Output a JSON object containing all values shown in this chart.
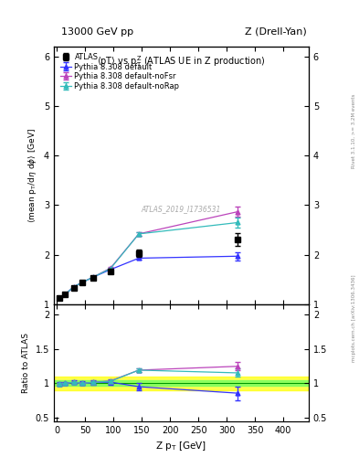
{
  "title_left": "13000 GeV pp",
  "title_right": "Z (Drell-Yan)",
  "plot_title": "<pT> vs p$_{T}^{Z}$ (ATLAS UE in Z production)",
  "xlabel": "Z p_{T} [GeV]",
  "ylabel_main": "<mean p_{T}/d#eta d#phi> [GeV]",
  "ylabel_ratio": "Ratio to ATLAS",
  "watermark": "ATLAS_2019_I1736531",
  "rivet_label": "Rivet 3.1.10, >= 3.2M events",
  "mcplots_label": "mcplots.cern.ch [arXiv:1306.3436]",
  "atlas_x": [
    5,
    15,
    30,
    45,
    65,
    95,
    145,
    320
  ],
  "atlas_y": [
    1.13,
    1.2,
    1.33,
    1.44,
    1.53,
    1.67,
    2.03,
    2.3
  ],
  "atlas_yerr": [
    0.03,
    0.03,
    0.03,
    0.04,
    0.04,
    0.05,
    0.07,
    0.13
  ],
  "default_x": [
    5,
    15,
    30,
    45,
    65,
    95,
    145,
    320
  ],
  "default_y": [
    1.12,
    1.2,
    1.35,
    1.44,
    1.55,
    1.7,
    1.93,
    1.97
  ],
  "default_yerr": [
    0.01,
    0.01,
    0.01,
    0.01,
    0.02,
    0.02,
    0.03,
    0.08
  ],
  "noFsr_x": [
    5,
    15,
    30,
    45,
    65,
    95,
    145,
    320
  ],
  "noFsr_y": [
    1.12,
    1.2,
    1.35,
    1.44,
    1.55,
    1.73,
    2.42,
    2.87
  ],
  "noFsr_yerr": [
    0.01,
    0.01,
    0.01,
    0.01,
    0.02,
    0.02,
    0.04,
    0.1
  ],
  "noRap_x": [
    5,
    15,
    30,
    45,
    65,
    95,
    145,
    320
  ],
  "noRap_y": [
    1.12,
    1.2,
    1.35,
    1.44,
    1.55,
    1.72,
    2.42,
    2.65
  ],
  "noRap_yerr": [
    0.01,
    0.01,
    0.01,
    0.01,
    0.02,
    0.02,
    0.04,
    0.1
  ],
  "ratio_default_y": [
    0.991,
    1.0,
    1.015,
    1.0,
    1.013,
    1.018,
    0.951,
    0.857
  ],
  "ratio_default_yerr": [
    0.025,
    0.025,
    0.025,
    0.027,
    0.03,
    0.035,
    0.05,
    0.1
  ],
  "ratio_noFsr_y": [
    0.991,
    1.0,
    1.015,
    1.0,
    1.013,
    1.036,
    1.192,
    1.248
  ],
  "ratio_noFsr_yerr": [
    0.01,
    0.01,
    0.01,
    0.01,
    0.015,
    0.015,
    0.03,
    0.06
  ],
  "ratio_noRap_y": [
    0.991,
    1.0,
    1.015,
    1.0,
    1.013,
    1.03,
    1.192,
    1.152
  ],
  "ratio_noRap_yerr": [
    0.01,
    0.01,
    0.01,
    0.01,
    0.015,
    0.015,
    0.03,
    0.06
  ],
  "color_atlas": "#000000",
  "color_default": "#3333ff",
  "color_noFsr": "#bb44bb",
  "color_noRap": "#33bbbb",
  "band_green_low": 0.96,
  "band_green_high": 1.04,
  "band_yellow_low": 0.9,
  "band_yellow_high": 1.1,
  "main_ylim": [
    1.0,
    6.2
  ],
  "main_yticks": [
    1,
    2,
    3,
    4,
    5,
    6
  ],
  "ratio_ylim": [
    0.45,
    2.15
  ],
  "ratio_yticks": [
    0.5,
    1.0,
    1.5,
    2.0
  ],
  "xlim": [
    -5,
    445
  ]
}
